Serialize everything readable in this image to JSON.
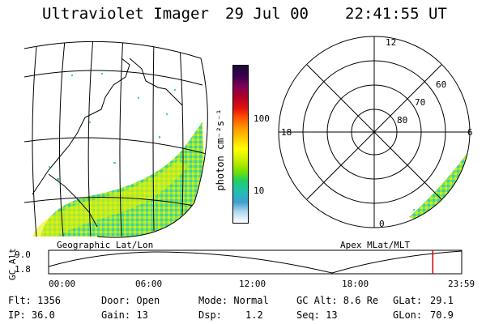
{
  "header": {
    "title": "Ultraviolet Imager",
    "date": "29 Jul 00",
    "time": "22:41:55 UT"
  },
  "left_map": {
    "label": "Geographic Lat/Lon"
  },
  "colorbar": {
    "unit_label": "photon cm⁻²s⁻¹",
    "ticks": [
      "100",
      "10"
    ],
    "colors": [
      "#1a0a3a",
      "#3a0050",
      "#800058",
      "#b00028",
      "#e01010",
      "#ff5000",
      "#ff9a00",
      "#ffd000",
      "#ffff00",
      "#c8f000",
      "#7ee000",
      "#20d060",
      "#20c0b0",
      "#40a0d0",
      "#b0d8f0",
      "#ffffff"
    ]
  },
  "polar": {
    "label": "Apex MLat/MLT",
    "mlt_labels": [
      "12",
      "18",
      "6",
      "0"
    ],
    "lat_labels": [
      "60",
      "70",
      "80"
    ]
  },
  "altitude_plot": {
    "ylabel": "GC Alt",
    "y_ticks": [
      "9.0",
      "1.8"
    ],
    "x_ticks": [
      "00:00",
      "06:00",
      "12:00",
      "18:00",
      "23:59"
    ],
    "current_time_fraction": 0.93,
    "marker_color": "#cc0000"
  },
  "info": {
    "flt": "Flt: 1356",
    "ip": "IP: 36.0",
    "door": "Door: Open",
    "gain": "Gain: 13",
    "mode": "Mode: Normal",
    "dsp_label": "Dsp:",
    "dsp_value": "1.2",
    "gc_alt": "GC Alt: 8.6 Re",
    "seq": "Seq: 13",
    "glat_label": "GLat:",
    "glat_value": "29.1",
    "glon_label": "GLon:",
    "glon_value": "70.9"
  }
}
